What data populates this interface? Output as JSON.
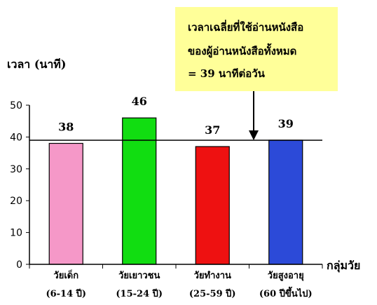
{
  "chart_data": {
    "type": "bar",
    "ylabel": "เวลา (นาที)",
    "xlabel": "กลุ่มวัย",
    "ylim": [
      0,
      50
    ],
    "yticks": [
      "0",
      "10",
      "20",
      "30",
      "40",
      "50"
    ],
    "categories": [
      {
        "line1": "วัยเด็ก",
        "line2": "(6-14 ปี)"
      },
      {
        "line1": "วัยเยาวชน",
        "line2": "(15-24 ปี)"
      },
      {
        "line1": "วัยทำงาน",
        "line2": "(25-59 ปี)"
      },
      {
        "line1": "วัยสูงอายุ",
        "line2": "(60 ปีขึ้นไป)"
      }
    ],
    "values": [
      38,
      46,
      37,
      39
    ],
    "value_labels": [
      "38",
      "46",
      "37",
      "39"
    ],
    "bar_colors": [
      "#f598c8",
      "#11dd11",
      "#ee1111",
      "#2c4ad8"
    ],
    "reference_line": 39,
    "annotation": {
      "lines": [
        "เวลาเฉลี่ยที่ใช้อ่านหนังสือ",
        "ของผู้อ่านหนังสือทั้งหมด",
        "= 39 นาทีต่อวัน"
      ],
      "background": "#ffff99"
    },
    "grid": false,
    "legend": "none"
  }
}
